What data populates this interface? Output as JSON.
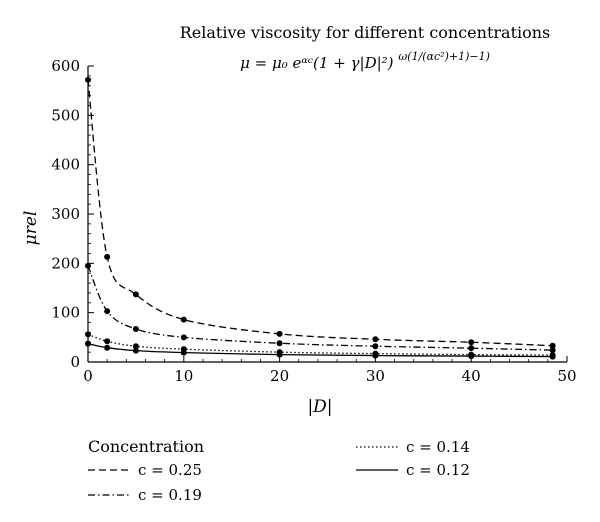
{
  "chart_data": {
    "type": "line",
    "title": "Relative viscosity for different concentrations",
    "subtitle": "μ = μ₀ e^{αc}(1 + γ|D|²)^{ω(1/(αc²)+1)−1)}",
    "subtitle_display": "μ = μ₀ eᵅᶜ(1 + γ|D|²)",
    "subtitle_exponent": "ω(1/(αc²)+1)−1)",
    "xlabel": "|D|",
    "ylabel": "μrel",
    "xlim": [
      0,
      50
    ],
    "ylim": [
      0,
      600
    ],
    "xticks": [
      0,
      10,
      20,
      30,
      40,
      50
    ],
    "yticks": [
      0,
      100,
      200,
      300,
      400,
      500,
      600
    ],
    "grid": false,
    "legend": {
      "title": "Concentration",
      "placement": "below-chart"
    },
    "series": [
      {
        "name": "c = 0.25",
        "style": "dashed",
        "points_x": [
          0,
          2,
          5,
          10,
          20,
          30,
          40,
          48.5
        ],
        "points_y": [
          572,
          213,
          137,
          86,
          57,
          46,
          40,
          33
        ]
      },
      {
        "name": "c = 0.19",
        "style": "dash-dot",
        "points_x": [
          0,
          2,
          5,
          10,
          20,
          30,
          40,
          48.5
        ],
        "points_y": [
          195,
          103,
          67,
          50,
          38,
          32,
          28,
          24
        ]
      },
      {
        "name": "c = 0.14",
        "style": "dotted",
        "points_x": [
          0,
          2,
          5,
          10,
          20,
          30,
          40,
          48.5
        ],
        "points_y": [
          56,
          42,
          32,
          26,
          20,
          17,
          15,
          14
        ]
      },
      {
        "name": "c = 0.12",
        "style": "solid",
        "points_x": [
          0,
          2,
          5,
          10,
          20,
          30,
          40,
          48.5
        ],
        "points_y": [
          37,
          29,
          23,
          19,
          15,
          13,
          12,
          11
        ]
      }
    ]
  }
}
